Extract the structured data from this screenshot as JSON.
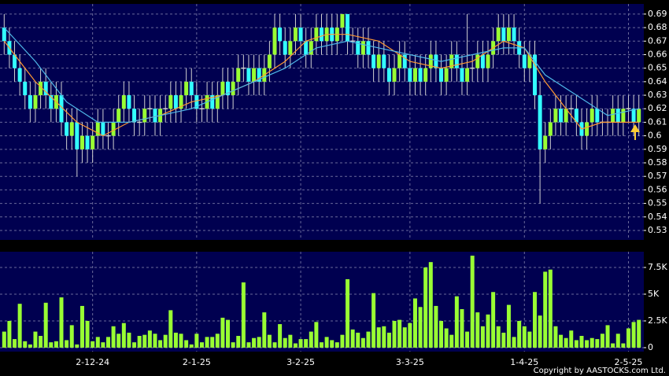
{
  "chart_data": [
    {
      "type": "candlestick",
      "xlim": [
        -0.5,
        122.5
      ],
      "xticks": [
        {
          "value": 17,
          "label": "2-12-24"
        },
        {
          "value": 37,
          "label": "2-1-25"
        },
        {
          "value": 57,
          "label": "3-2-25"
        },
        {
          "value": 78,
          "label": "3-3-25"
        },
        {
          "value": 100,
          "label": "1-4-25"
        },
        {
          "value": 120,
          "label": "2-5-25"
        }
      ],
      "ylim": [
        0.523,
        0.6975
      ],
      "yticks": [
        0.53,
        0.54,
        0.55,
        0.56,
        0.57,
        0.58,
        0.59,
        0.6,
        0.61,
        0.62,
        0.63,
        0.64,
        0.65,
        0.66,
        0.67,
        0.68,
        0.69
      ],
      "grid": true,
      "up_color": "#99ff33",
      "down_color": "#33ffff",
      "doji_color": "#d0d0d0",
      "open": [
        0.68,
        0.67,
        0.66,
        0.65,
        0.64,
        0.63,
        0.62,
        0.63,
        0.64,
        0.63,
        0.62,
        0.63,
        0.61,
        0.6,
        0.61,
        0.59,
        0.6,
        0.59,
        0.6,
        0.61,
        0.6,
        0.6,
        0.61,
        0.62,
        0.63,
        0.62,
        0.61,
        0.61,
        0.62,
        0.62,
        0.61,
        0.62,
        0.62,
        0.63,
        0.62,
        0.63,
        0.64,
        0.63,
        0.62,
        0.62,
        0.63,
        0.62,
        0.63,
        0.64,
        0.63,
        0.64,
        0.65,
        0.65,
        0.64,
        0.65,
        0.64,
        0.65,
        0.66,
        0.68,
        0.67,
        0.66,
        0.67,
        0.68,
        0.67,
        0.66,
        0.67,
        0.68,
        0.67,
        0.68,
        0.67,
        0.68,
        0.69,
        0.67,
        0.67,
        0.66,
        0.67,
        0.66,
        0.65,
        0.66,
        0.65,
        0.64,
        0.65,
        0.66,
        0.65,
        0.64,
        0.65,
        0.64,
        0.65,
        0.66,
        0.65,
        0.64,
        0.65,
        0.66,
        0.65,
        0.64,
        0.65,
        0.65,
        0.66,
        0.65,
        0.66,
        0.67,
        0.68,
        0.67,
        0.68,
        0.67,
        0.66,
        0.65,
        0.66,
        0.63,
        0.59,
        0.6,
        0.61,
        0.62,
        0.61,
        0.62,
        0.62,
        0.61,
        0.6,
        0.61,
        0.62,
        0.61,
        0.61,
        0.61,
        0.62,
        0.61,
        0.62,
        0.62,
        0.61
      ],
      "high": [
        0.69,
        0.68,
        0.67,
        0.66,
        0.65,
        0.64,
        0.64,
        0.65,
        0.65,
        0.64,
        0.64,
        0.64,
        0.62,
        0.62,
        0.62,
        0.61,
        0.61,
        0.61,
        0.62,
        0.62,
        0.61,
        0.62,
        0.63,
        0.64,
        0.64,
        0.63,
        0.62,
        0.63,
        0.63,
        0.63,
        0.63,
        0.63,
        0.64,
        0.64,
        0.64,
        0.65,
        0.65,
        0.64,
        0.63,
        0.64,
        0.64,
        0.64,
        0.65,
        0.65,
        0.65,
        0.66,
        0.66,
        0.66,
        0.66,
        0.66,
        0.66,
        0.67,
        0.69,
        0.69,
        0.68,
        0.68,
        0.69,
        0.69,
        0.68,
        0.68,
        0.69,
        0.69,
        0.69,
        0.69,
        0.69,
        0.69,
        0.69,
        0.68,
        0.68,
        0.68,
        0.68,
        0.67,
        0.67,
        0.67,
        0.66,
        0.66,
        0.67,
        0.67,
        0.66,
        0.66,
        0.66,
        0.66,
        0.67,
        0.67,
        0.66,
        0.66,
        0.67,
        0.67,
        0.66,
        0.69,
        0.66,
        0.67,
        0.67,
        0.67,
        0.68,
        0.69,
        0.69,
        0.69,
        0.69,
        0.68,
        0.67,
        0.67,
        0.67,
        0.64,
        0.61,
        0.62,
        0.63,
        0.63,
        0.63,
        0.63,
        0.63,
        0.62,
        0.62,
        0.63,
        0.63,
        0.62,
        0.62,
        0.63,
        0.63,
        0.63,
        0.63,
        0.63,
        0.63
      ],
      "low": [
        0.66,
        0.65,
        0.64,
        0.63,
        0.62,
        0.61,
        0.61,
        0.62,
        0.62,
        0.61,
        0.61,
        0.6,
        0.59,
        0.59,
        0.57,
        0.58,
        0.58,
        0.58,
        0.59,
        0.59,
        0.59,
        0.59,
        0.6,
        0.61,
        0.61,
        0.6,
        0.6,
        0.6,
        0.61,
        0.6,
        0.6,
        0.61,
        0.61,
        0.61,
        0.61,
        0.62,
        0.62,
        0.61,
        0.61,
        0.61,
        0.61,
        0.61,
        0.62,
        0.62,
        0.62,
        0.63,
        0.64,
        0.63,
        0.63,
        0.63,
        0.63,
        0.64,
        0.65,
        0.66,
        0.65,
        0.65,
        0.66,
        0.66,
        0.65,
        0.65,
        0.66,
        0.66,
        0.66,
        0.66,
        0.66,
        0.67,
        0.66,
        0.66,
        0.65,
        0.65,
        0.65,
        0.64,
        0.64,
        0.64,
        0.63,
        0.63,
        0.64,
        0.64,
        0.63,
        0.63,
        0.63,
        0.63,
        0.64,
        0.64,
        0.63,
        0.63,
        0.64,
        0.64,
        0.63,
        0.63,
        0.64,
        0.64,
        0.64,
        0.64,
        0.65,
        0.66,
        0.66,
        0.66,
        0.66,
        0.65,
        0.64,
        0.64,
        0.62,
        0.55,
        0.58,
        0.59,
        0.6,
        0.6,
        0.6,
        0.61,
        0.6,
        0.59,
        0.59,
        0.6,
        0.6,
        0.6,
        0.6,
        0.6,
        0.6,
        0.6,
        0.61,
        0.6,
        0.6
      ],
      "close": [
        0.67,
        0.66,
        0.65,
        0.64,
        0.63,
        0.62,
        0.63,
        0.64,
        0.63,
        0.62,
        0.63,
        0.61,
        0.6,
        0.61,
        0.59,
        0.6,
        0.59,
        0.6,
        0.61,
        0.6,
        0.6,
        0.61,
        0.62,
        0.63,
        0.62,
        0.61,
        0.61,
        0.62,
        0.62,
        0.61,
        0.62,
        0.62,
        0.63,
        0.62,
        0.63,
        0.64,
        0.63,
        0.62,
        0.62,
        0.63,
        0.62,
        0.63,
        0.64,
        0.63,
        0.64,
        0.65,
        0.65,
        0.64,
        0.65,
        0.64,
        0.65,
        0.66,
        0.68,
        0.67,
        0.66,
        0.67,
        0.68,
        0.67,
        0.66,
        0.67,
        0.68,
        0.67,
        0.68,
        0.67,
        0.68,
        0.69,
        0.67,
        0.67,
        0.66,
        0.67,
        0.66,
        0.65,
        0.66,
        0.65,
        0.64,
        0.65,
        0.66,
        0.65,
        0.64,
        0.65,
        0.64,
        0.65,
        0.66,
        0.65,
        0.64,
        0.65,
        0.66,
        0.65,
        0.64,
        0.65,
        0.65,
        0.66,
        0.65,
        0.66,
        0.67,
        0.68,
        0.67,
        0.68,
        0.67,
        0.66,
        0.65,
        0.66,
        0.63,
        0.59,
        0.6,
        0.61,
        0.62,
        0.61,
        0.62,
        0.62,
        0.61,
        0.6,
        0.61,
        0.62,
        0.61,
        0.61,
        0.61,
        0.62,
        0.61,
        0.62,
        0.62,
        0.61,
        0.62
      ],
      "series": [
        {
          "color": "#ff9933",
          "x": [
            0,
            3,
            6,
            10,
            14,
            19,
            24,
            30,
            36,
            42,
            48,
            54,
            58,
            62,
            66,
            72,
            78,
            84,
            90,
            96,
            100,
            104,
            108,
            111,
            115,
            122
          ],
          "values": [
            0.67,
            0.655,
            0.64,
            0.625,
            0.61,
            0.6,
            0.61,
            0.615,
            0.625,
            0.63,
            0.64,
            0.655,
            0.67,
            0.675,
            0.675,
            0.67,
            0.655,
            0.65,
            0.655,
            0.67,
            0.665,
            0.64,
            0.62,
            0.605,
            0.61,
            0.61
          ]
        },
        {
          "color": "#4fb8e8",
          "x": [
            0,
            6,
            12,
            18,
            24,
            30,
            36,
            42,
            48,
            54,
            60,
            66,
            72,
            78,
            84,
            90,
            96,
            100,
            104,
            110,
            116,
            122
          ],
          "values": [
            0.68,
            0.655,
            0.625,
            0.61,
            0.61,
            0.615,
            0.62,
            0.63,
            0.64,
            0.65,
            0.665,
            0.67,
            0.665,
            0.66,
            0.655,
            0.66,
            0.665,
            0.665,
            0.645,
            0.63,
            0.615,
            0.62
          ]
        }
      ]
    },
    {
      "type": "bar",
      "color": "#99ff33",
      "ylim": [
        -370,
        8970
      ],
      "yticks": [
        0,
        {
          "value": 2500,
          "label": "2.5K"
        },
        {
          "value": 5000,
          "label": "5K"
        },
        {
          "value": 7500,
          "label": "7.5K"
        }
      ],
      "values": [
        1500,
        2500,
        800,
        4100,
        600,
        300,
        1500,
        1100,
        4200,
        500,
        600,
        4700,
        700,
        2100,
        300,
        3900,
        2500,
        600,
        1000,
        500,
        1000,
        2000,
        1300,
        2300,
        1400,
        500,
        1100,
        1200,
        1600,
        1300,
        700,
        1200,
        3500,
        1400,
        1300,
        700,
        300,
        1300,
        500,
        1000,
        1000,
        1300,
        2800,
        2600,
        500,
        1100,
        6100,
        500,
        900,
        1000,
        3300,
        1200,
        500,
        2200,
        900,
        1200,
        400,
        800,
        800,
        1500,
        2400,
        500,
        1000,
        700,
        500,
        1200,
        6400,
        1700,
        1400,
        900,
        1500,
        5100,
        1900,
        2000,
        1400,
        2500,
        2600,
        1900,
        2300,
        4600,
        3800,
        7500,
        8000,
        3900,
        2500,
        1800,
        1200,
        4800,
        3600,
        1500,
        8600,
        3300,
        2000,
        3100,
        5200,
        2000,
        1400,
        4000,
        1000,
        2500,
        2000,
        1500,
        5200,
        3000,
        7100,
        7300,
        2000,
        1200,
        900,
        1600,
        700,
        1100,
        700,
        900,
        800,
        1300,
        2100,
        400,
        1300,
        400,
        1800,
        2400,
        2600
      ]
    }
  ],
  "copyright": "Copyright by AASTOCKS.com Ltd."
}
